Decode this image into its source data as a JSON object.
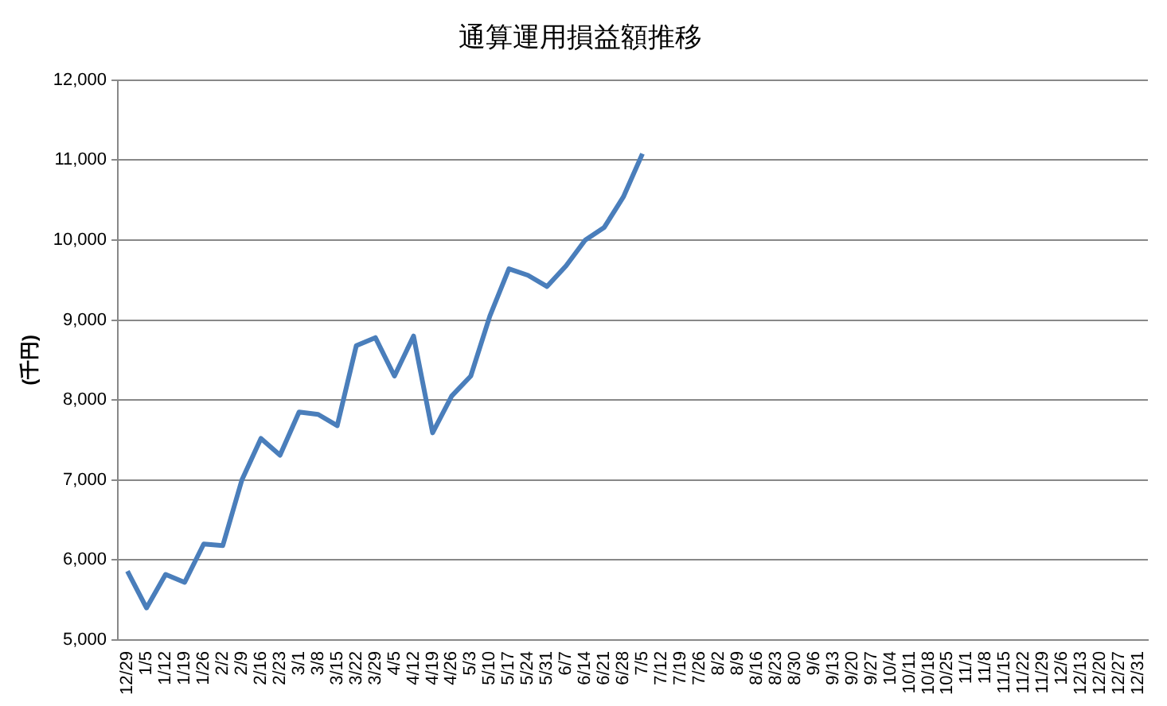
{
  "chart_data": {
    "type": "line",
    "title": "通算運用損益額推移",
    "ylabel": "(千円)",
    "categories": [
      "12/29",
      "1/5",
      "1/12",
      "1/19",
      "1/26",
      "2/2",
      "2/9",
      "2/16",
      "2/23",
      "3/1",
      "3/8",
      "3/15",
      "3/22",
      "3/29",
      "4/5",
      "4/12",
      "4/19",
      "4/26",
      "5/3",
      "5/10",
      "5/17",
      "5/24",
      "5/31",
      "6/7",
      "6/14",
      "6/21",
      "6/28",
      "7/5",
      "7/12",
      "7/19",
      "7/26",
      "8/2",
      "8/9",
      "8/16",
      "8/23",
      "8/30",
      "9/6",
      "9/13",
      "9/20",
      "9/27",
      "10/4",
      "10/11",
      "10/18",
      "10/25",
      "11/1",
      "11/8",
      "11/15",
      "11/22",
      "11/29",
      "12/6",
      "12/13",
      "12/20",
      "12/27",
      "12/31"
    ],
    "series": [
      {
        "color": "#4a7ebb",
        "values": [
          5860,
          5400,
          5820,
          5720,
          6200,
          6180,
          7000,
          7520,
          7310,
          7850,
          7820,
          7680,
          8680,
          8780,
          8300,
          8800,
          7590,
          8050,
          8300,
          9050,
          9640,
          9560,
          9420,
          9680,
          10000,
          10160,
          10540,
          11080,
          null,
          null,
          null,
          null,
          null,
          null,
          null,
          null,
          null,
          null,
          null,
          null,
          null,
          null,
          null,
          null,
          null,
          null,
          null,
          null,
          null,
          null,
          null,
          null,
          null,
          null
        ]
      }
    ],
    "ylim": [
      5000,
      12000
    ],
    "yticks": [
      {
        "value": 5000,
        "label": "5,000"
      },
      {
        "value": 6000,
        "label": "6,000"
      },
      {
        "value": 7000,
        "label": "7,000"
      },
      {
        "value": 8000,
        "label": "8,000"
      },
      {
        "value": 9000,
        "label": "9,000"
      },
      {
        "value": 10000,
        "label": "10,000"
      },
      {
        "value": 11000,
        "label": "11,000"
      },
      {
        "value": 12000,
        "label": "12,000"
      }
    ],
    "grid": "y",
    "legend": false,
    "marker": "none",
    "line_style": "solid"
  }
}
